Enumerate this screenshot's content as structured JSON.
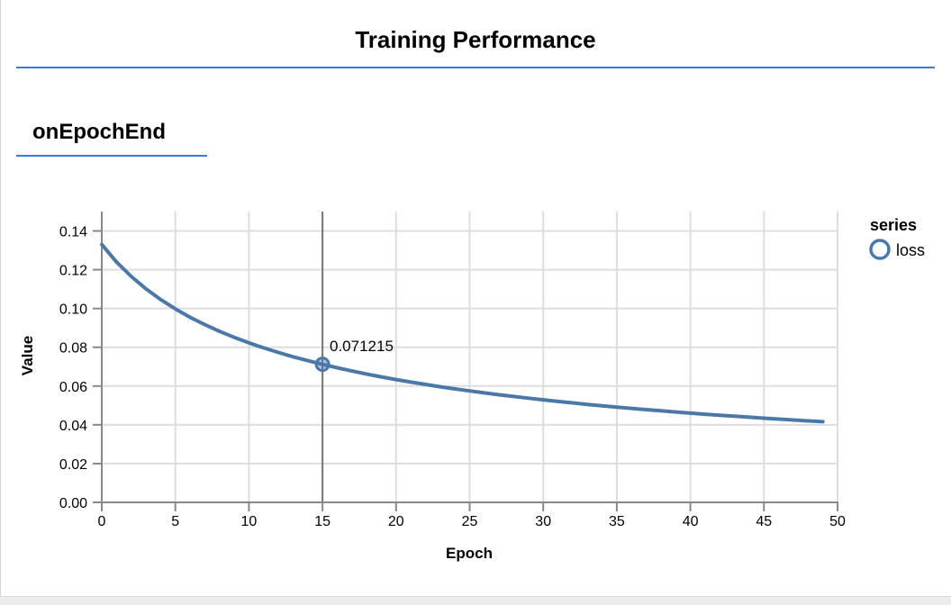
{
  "report": {
    "title": "Training Performance"
  },
  "section": {
    "heading": "onEpochEnd"
  },
  "accent": {
    "rule_blue": "#357edd"
  },
  "chart_data": {
    "type": "line",
    "xlabel": "Epoch",
    "ylabel": "Value",
    "xlim": [
      0,
      50
    ],
    "ylim": [
      0,
      0.15
    ],
    "grid": true,
    "x_ticks": [
      0,
      5,
      10,
      15,
      20,
      25,
      30,
      35,
      40,
      45,
      50
    ],
    "y_ticks": [
      {
        "value": 0.0,
        "label": "0.00"
      },
      {
        "value": 0.02,
        "label": "0.02"
      },
      {
        "value": 0.04,
        "label": "0.04"
      },
      {
        "value": 0.06,
        "label": "0.06"
      },
      {
        "value": 0.08,
        "label": "0.08"
      },
      {
        "value": 0.1,
        "label": "0.10"
      },
      {
        "value": 0.12,
        "label": "0.12"
      },
      {
        "value": 0.14,
        "label": "0.14"
      }
    ],
    "legend": {
      "title": "series",
      "position": "right",
      "entries": [
        "loss"
      ]
    },
    "series": [
      {
        "name": "loss",
        "color": "#4c78a8",
        "x": [
          0,
          1,
          2,
          3,
          4,
          5,
          6,
          7,
          8,
          9,
          10,
          11,
          12,
          13,
          14,
          15,
          16,
          17,
          18,
          19,
          20,
          21,
          22,
          23,
          24,
          25,
          26,
          27,
          28,
          29,
          30,
          31,
          32,
          33,
          34,
          35,
          36,
          37,
          38,
          39,
          40,
          41,
          42,
          43,
          44,
          45,
          46,
          47,
          48,
          49
        ],
        "values": [
          0.133,
          0.124043,
          0.116543,
          0.110148,
          0.104618,
          0.099777,
          0.095494,
          0.091672,
          0.088236,
          0.085125,
          0.082293,
          0.0797,
          0.077317,
          0.075115,
          0.073075,
          0.071215,
          0.069406,
          0.06775,
          0.066195,
          0.064731,
          0.063353,
          0.06205,
          0.060817,
          0.059648,
          0.058537,
          0.057481,
          0.056473,
          0.055513,
          0.054595,
          0.053716,
          0.052875,
          0.052068,
          0.051293,
          0.050549,
          0.049832,
          0.049142,
          0.048478,
          0.047837,
          0.047219,
          0.046622,
          0.046044,
          0.045486,
          0.044945,
          0.044421,
          0.043913,
          0.04342,
          0.042943,
          0.042479,
          0.042028,
          0.04159
        ]
      }
    ],
    "highlight": {
      "x": 15,
      "value": 0.071215,
      "label": "0.071215"
    },
    "colors": {
      "line": "#4c78a8",
      "grid": "#dddddd",
      "axis": "#888888",
      "crosshair": "#767676",
      "marker_fill": "#4c78a8"
    }
  }
}
